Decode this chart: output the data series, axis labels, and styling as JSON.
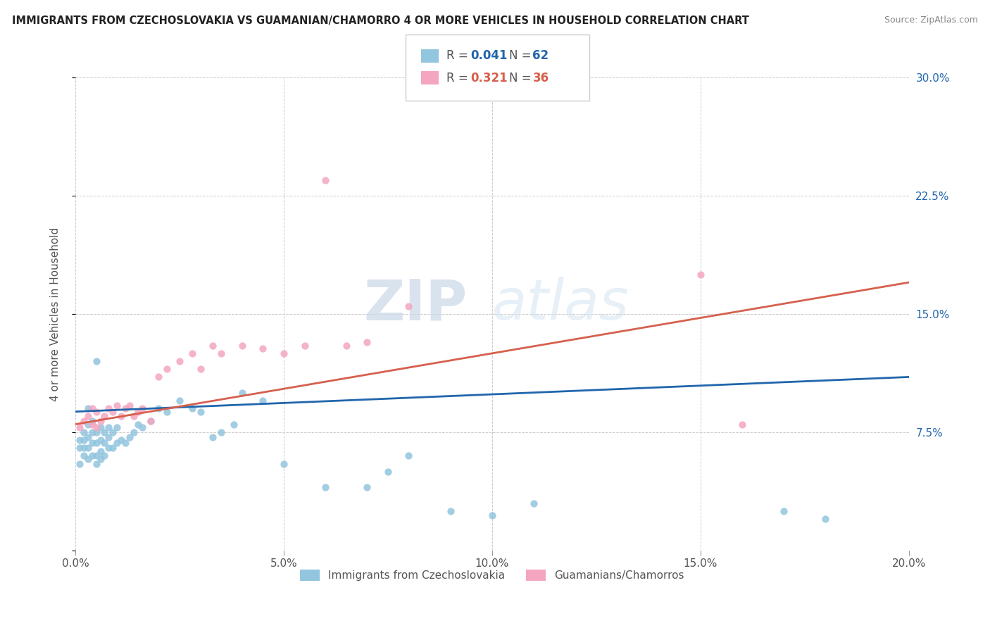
{
  "title": "IMMIGRANTS FROM CZECHOSLOVAKIA VS GUAMANIAN/CHAMORRO 4 OR MORE VEHICLES IN HOUSEHOLD CORRELATION CHART",
  "source": "Source: ZipAtlas.com",
  "ylabel": "4 or more Vehicles in Household",
  "legend_label_blue": "Immigrants from Czechoslovakia",
  "legend_label_pink": "Guamanians/Chamorros",
  "r_blue": 0.041,
  "n_blue": 62,
  "r_pink": 0.321,
  "n_pink": 36,
  "color_blue": "#92c5de",
  "color_pink": "#f4a6c0",
  "line_color_blue": "#2166ac",
  "line_color_pink": "#d6604d",
  "xlim": [
    0.0,
    0.2
  ],
  "ylim": [
    0.0,
    0.3
  ],
  "xticks": [
    0.0,
    0.05,
    0.1,
    0.15,
    0.2
  ],
  "yticks": [
    0.0,
    0.075,
    0.15,
    0.225,
    0.3
  ],
  "xticklabels": [
    "0.0%",
    "5.0%",
    "10.0%",
    "15.0%",
    "20.0%"
  ],
  "right_yticklabels": [
    "",
    "7.5%",
    "15.0%",
    "22.5%",
    "30.0%"
  ],
  "watermark_zip": "ZIP",
  "watermark_atlas": "atlas",
  "blue_trend_x0": 0.0,
  "blue_trend_y0": 0.088,
  "blue_trend_x1": 0.2,
  "blue_trend_y1": 0.11,
  "pink_trend_x0": 0.0,
  "pink_trend_y0": 0.08,
  "pink_trend_x1": 0.2,
  "pink_trend_y1": 0.17,
  "blue_scatter_x": [
    0.001,
    0.001,
    0.001,
    0.002,
    0.002,
    0.002,
    0.002,
    0.003,
    0.003,
    0.003,
    0.003,
    0.003,
    0.004,
    0.004,
    0.004,
    0.004,
    0.005,
    0.005,
    0.005,
    0.005,
    0.005,
    0.006,
    0.006,
    0.006,
    0.006,
    0.007,
    0.007,
    0.007,
    0.008,
    0.008,
    0.008,
    0.009,
    0.009,
    0.01,
    0.01,
    0.011,
    0.012,
    0.013,
    0.014,
    0.015,
    0.016,
    0.018,
    0.02,
    0.022,
    0.025,
    0.028,
    0.03,
    0.033,
    0.035,
    0.038,
    0.04,
    0.045,
    0.05,
    0.06,
    0.07,
    0.075,
    0.08,
    0.09,
    0.1,
    0.11,
    0.17,
    0.18
  ],
  "blue_scatter_y": [
    0.055,
    0.065,
    0.07,
    0.06,
    0.065,
    0.07,
    0.075,
    0.058,
    0.065,
    0.072,
    0.08,
    0.09,
    0.06,
    0.068,
    0.075,
    0.082,
    0.055,
    0.06,
    0.068,
    0.075,
    0.12,
    0.058,
    0.063,
    0.07,
    0.078,
    0.06,
    0.068,
    0.075,
    0.065,
    0.072,
    0.078,
    0.065,
    0.075,
    0.068,
    0.078,
    0.07,
    0.068,
    0.072,
    0.075,
    0.08,
    0.078,
    0.082,
    0.09,
    0.088,
    0.095,
    0.09,
    0.088,
    0.072,
    0.075,
    0.08,
    0.1,
    0.095,
    0.055,
    0.04,
    0.04,
    0.05,
    0.06,
    0.025,
    0.022,
    0.03,
    0.025,
    0.02
  ],
  "pink_scatter_x": [
    0.001,
    0.002,
    0.003,
    0.004,
    0.004,
    0.005,
    0.005,
    0.006,
    0.007,
    0.008,
    0.009,
    0.01,
    0.011,
    0.012,
    0.013,
    0.014,
    0.015,
    0.016,
    0.018,
    0.02,
    0.022,
    0.025,
    0.028,
    0.03,
    0.033,
    0.035,
    0.04,
    0.045,
    0.05,
    0.055,
    0.06,
    0.065,
    0.07,
    0.08,
    0.15,
    0.16
  ],
  "pink_scatter_y": [
    0.078,
    0.082,
    0.085,
    0.08,
    0.09,
    0.078,
    0.088,
    0.082,
    0.085,
    0.09,
    0.088,
    0.092,
    0.085,
    0.09,
    0.092,
    0.085,
    0.088,
    0.09,
    0.082,
    0.11,
    0.115,
    0.12,
    0.125,
    0.115,
    0.13,
    0.125,
    0.13,
    0.128,
    0.125,
    0.13,
    0.235,
    0.13,
    0.132,
    0.155,
    0.175,
    0.08
  ]
}
